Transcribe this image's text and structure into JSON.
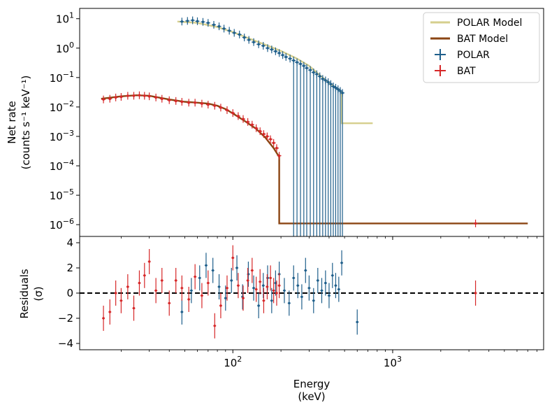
{
  "chart_data": {
    "type": "scatter",
    "x_scale": "log",
    "xlim": [
      11,
      8800
    ],
    "xlabel_line1": "Energy",
    "xlabel_line2": "(keV)",
    "x_ticks": [
      {
        "value": 100,
        "base": "10",
        "exp": "2"
      },
      {
        "value": 1000,
        "base": "10",
        "exp": "3"
      }
    ],
    "top_panel": {
      "y_scale": "log",
      "ylim_log10": [
        -6.4,
        1.35
      ],
      "ylabel_line1": "Net rate",
      "ylabel_line2": "(counts s⁻¹ keV⁻¹)",
      "y_ticks": [
        {
          "value_log10": 1,
          "base": "10",
          "exp": "1"
        },
        {
          "value_log10": 0,
          "base": "10",
          "exp": "0"
        },
        {
          "value_log10": -1,
          "base": "10",
          "exp": "−1"
        },
        {
          "value_log10": -2,
          "base": "10",
          "exp": "−2"
        },
        {
          "value_log10": -3,
          "base": "10",
          "exp": "−3"
        },
        {
          "value_log10": -4,
          "base": "10",
          "exp": "−4"
        },
        {
          "value_log10": -5,
          "base": "10",
          "exp": "−5"
        },
        {
          "value_log10": -6,
          "base": "10",
          "exp": "−6"
        }
      ],
      "legend_position": "top-right",
      "series": [
        {
          "name": "POLAR Model",
          "kind": "model-line",
          "color": "#d6cf8e",
          "x": [
            45,
            60,
            80,
            100,
            130,
            160,
            200,
            250,
            300,
            350,
            400,
            450,
            480,
            480,
            750
          ],
          "y": [
            8.0,
            7.2,
            5.2,
            3.5,
            2.0,
            1.3,
            0.8,
            0.45,
            0.25,
            0.12,
            0.065,
            0.042,
            0.032,
            0.0028,
            0.0028
          ]
        },
        {
          "name": "BAT Model",
          "kind": "model-line",
          "color": "#8b4513",
          "x": [
            15,
            20,
            25,
            30,
            40,
            50,
            60,
            70,
            80,
            90,
            100,
            120,
            140,
            160,
            180,
            195,
            195,
            7000
          ],
          "y": [
            0.019,
            0.023,
            0.025,
            0.024,
            0.018,
            0.015,
            0.014,
            0.013,
            0.011,
            0.0085,
            0.006,
            0.0032,
            0.0018,
            0.0009,
            0.0004,
            0.0002,
            1.1e-06,
            1.1e-06
          ]
        },
        {
          "name": "POLAR",
          "kind": "data",
          "color": "#1f5f8b",
          "x": [
            48,
            52,
            56,
            60,
            65,
            70,
            76,
            82,
            88,
            95,
            102,
            110,
            118,
            126,
            135,
            145,
            155,
            165,
            175,
            185,
            195,
            205,
            215,
            228,
            240,
            252,
            265,
            278,
            290,
            305,
            320,
            335,
            350,
            365,
            380,
            395,
            410,
            425,
            440,
            455,
            470,
            485
          ],
          "y": [
            8.0,
            8.4,
            8.8,
            8.2,
            7.8,
            7.2,
            6.2,
            5.5,
            4.6,
            3.9,
            3.3,
            2.9,
            2.3,
            1.9,
            1.6,
            1.35,
            1.2,
            1.0,
            0.9,
            0.78,
            0.68,
            0.58,
            0.5,
            0.44,
            0.38,
            0.33,
            0.29,
            0.25,
            0.21,
            0.18,
            0.15,
            0.13,
            0.11,
            0.09,
            0.08,
            0.07,
            0.06,
            0.05,
            0.045,
            0.04,
            0.035,
            0.03
          ]
        },
        {
          "name": "BAT",
          "kind": "data",
          "color": "#d62728",
          "x": [
            15.5,
            17,
            18.5,
            20,
            22,
            24,
            26,
            28,
            30,
            33,
            36,
            40,
            44,
            48,
            53,
            58,
            64,
            70,
            77,
            84,
            92,
            100,
            108,
            116,
            124,
            132,
            140,
            148,
            156,
            164,
            172,
            180,
            188,
            195,
            3300
          ],
          "y": [
            0.018,
            0.019,
            0.021,
            0.022,
            0.024,
            0.024,
            0.025,
            0.024,
            0.023,
            0.021,
            0.019,
            0.017,
            0.016,
            0.015,
            0.014,
            0.014,
            0.013,
            0.012,
            0.011,
            0.0095,
            0.0078,
            0.0062,
            0.0049,
            0.0039,
            0.0031,
            0.0025,
            0.0019,
            0.0015,
            0.0012,
            0.001,
            0.0008,
            0.0006,
            0.0004,
            0.00022,
            1.1e-06
          ]
        }
      ]
    },
    "bottom_panel": {
      "y_scale": "linear",
      "ylim": [
        -4.5,
        4.5
      ],
      "ylabel_line1": "Residuals",
      "ylabel_line2": "(σ)",
      "y_ticks": [
        4,
        2,
        0,
        -2,
        -4
      ],
      "y_tick_labels": [
        "4",
        "2",
        "0",
        "−2",
        "−4"
      ],
      "zero_line": 0,
      "series": [
        {
          "name": "POLAR",
          "color": "#1f5f8b",
          "x": [
            48,
            55,
            62,
            68,
            75,
            82,
            90,
            98,
            106,
            115,
            125,
            135,
            145,
            155,
            165,
            175,
            185,
            195,
            210,
            225,
            240,
            255,
            270,
            285,
            300,
            320,
            340,
            360,
            380,
            400,
            420,
            440,
            460,
            480,
            600
          ],
          "y": [
            -1.5,
            0.2,
            1.2,
            2.2,
            1.8,
            0.5,
            -0.4,
            1.0,
            2.0,
            -0.3,
            1.5,
            0.4,
            -1.0,
            0.6,
            1.2,
            -0.6,
            0.8,
            1.5,
            0.2,
            -0.8,
            1.2,
            0.6,
            -0.3,
            1.8,
            0.4,
            -0.6,
            1.0,
            0.2,
            0.8,
            -0.2,
            1.4,
            0.6,
            0.3,
            2.4,
            -2.3
          ]
        },
        {
          "name": "BAT",
          "color": "#d62728",
          "x": [
            15.5,
            17,
            18.5,
            20,
            22,
            24,
            26,
            28,
            30,
            33,
            36,
            40,
            44,
            48,
            53,
            58,
            64,
            70,
            77,
            84,
            92,
            100,
            108,
            116,
            124,
            132,
            140,
            148,
            156,
            164,
            172,
            180,
            188,
            195,
            3300
          ],
          "y": [
            -2.0,
            -1.5,
            0.0,
            -0.6,
            0.5,
            -1.2,
            0.8,
            1.4,
            2.5,
            0.2,
            1.0,
            -0.8,
            1.0,
            0.4,
            -0.5,
            1.3,
            -0.2,
            0.8,
            -2.6,
            -1.0,
            0.4,
            2.8,
            0.6,
            -0.4,
            1.0,
            1.8,
            0.3,
            0.9,
            -0.6,
            0.5,
            1.2,
            0.2,
            0.0,
            0.6,
            0.0
          ]
        }
      ]
    },
    "legend": [
      {
        "label": "POLAR Model",
        "style": "line",
        "color": "#d6cf8e"
      },
      {
        "label": "BAT Model",
        "style": "line",
        "color": "#8b4513"
      },
      {
        "label": "POLAR",
        "style": "errorbar",
        "color": "#1f5f8b"
      },
      {
        "label": "BAT",
        "style": "errorbar",
        "color": "#d62728"
      }
    ]
  }
}
